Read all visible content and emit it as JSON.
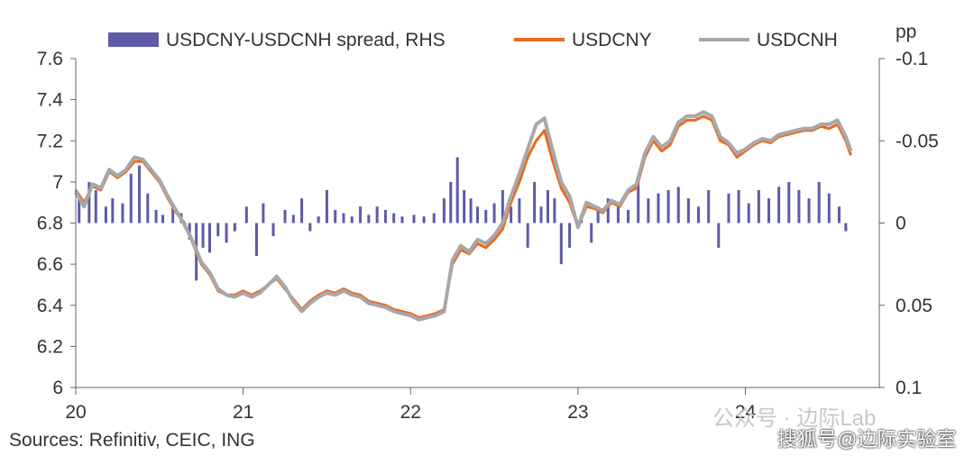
{
  "chart_data": {
    "type": "line",
    "title": "",
    "legend": {
      "placement": "top",
      "entries": [
        {
          "label": "USDCNY-USDCNH spread, RHS",
          "color": "#5e5aa8",
          "kind": "bar"
        },
        {
          "label": "USDCNY",
          "color": "#e86a1e",
          "kind": "line"
        },
        {
          "label": "USDCNH",
          "color": "#a8a8a8",
          "kind": "line"
        }
      ]
    },
    "left_axis": {
      "ylim": [
        6,
        7.6
      ],
      "ticks": [
        "6",
        "6.2",
        "6.4",
        "6.6",
        "6.8",
        "7",
        "7.2",
        "7.4",
        "7.6"
      ]
    },
    "right_axis": {
      "label": "pp",
      "ylim": [
        0.1,
        -0.1
      ],
      "inverted": true,
      "ticks": [
        {
          "value": -0.1,
          "label": "-0.1"
        },
        {
          "value": -0.05,
          "label": "-0.05"
        },
        {
          "value": 0,
          "label": "0"
        },
        {
          "value": 0.05,
          "label": "0.05"
        },
        {
          "value": 0.1,
          "label": "0.1"
        }
      ]
    },
    "x_axis": {
      "xlim": [
        2020,
        2024.8
      ],
      "ticks": [
        {
          "value": 2020,
          "label": "20"
        },
        {
          "value": 2021,
          "label": "21"
        },
        {
          "value": 2022,
          "label": "22"
        },
        {
          "value": 2023,
          "label": "23"
        },
        {
          "value": 2024,
          "label": "24"
        }
      ]
    },
    "grid": false,
    "series": [
      {
        "name": "USDCNY",
        "color": "#e86a1e",
        "x": [
          2020.0,
          2020.05,
          2020.1,
          2020.15,
          2020.2,
          2020.25,
          2020.3,
          2020.35,
          2020.4,
          2020.45,
          2020.5,
          2020.55,
          2020.6,
          2020.65,
          2020.7,
          2020.75,
          2020.8,
          2020.85,
          2020.9,
          2020.95,
          2021.0,
          2021.05,
          2021.1,
          2021.15,
          2021.2,
          2021.25,
          2021.3,
          2021.35,
          2021.4,
          2021.45,
          2021.5,
          2021.55,
          2021.6,
          2021.65,
          2021.7,
          2021.75,
          2021.8,
          2021.85,
          2021.9,
          2021.95,
          2022.0,
          2022.05,
          2022.1,
          2022.15,
          2022.2,
          2022.25,
          2022.3,
          2022.35,
          2022.4,
          2022.45,
          2022.5,
          2022.55,
          2022.6,
          2022.65,
          2022.7,
          2022.75,
          2022.8,
          2022.85,
          2022.9,
          2022.95,
          2023.0,
          2023.05,
          2023.1,
          2023.15,
          2023.2,
          2023.25,
          2023.3,
          2023.35,
          2023.4,
          2023.45,
          2023.5,
          2023.55,
          2023.6,
          2023.65,
          2023.7,
          2023.75,
          2023.8,
          2023.85,
          2023.9,
          2023.95,
          2024.0,
          2024.05,
          2024.1,
          2024.15,
          2024.2,
          2024.25,
          2024.3,
          2024.35,
          2024.4,
          2024.45,
          2024.5,
          2024.55,
          2024.6,
          2024.63
        ],
        "y": [
          6.96,
          6.9,
          6.98,
          6.96,
          7.05,
          7.02,
          7.05,
          7.1,
          7.1,
          7.05,
          7.0,
          6.92,
          6.85,
          6.8,
          6.7,
          6.6,
          6.55,
          6.47,
          6.45,
          6.45,
          6.47,
          6.45,
          6.47,
          6.5,
          6.53,
          6.48,
          6.43,
          6.38,
          6.42,
          6.45,
          6.47,
          6.46,
          6.48,
          6.46,
          6.45,
          6.42,
          6.41,
          6.4,
          6.38,
          6.37,
          6.36,
          6.34,
          6.35,
          6.36,
          6.38,
          6.6,
          6.67,
          6.65,
          6.7,
          6.68,
          6.72,
          6.77,
          6.9,
          7.0,
          7.12,
          7.2,
          7.25,
          7.1,
          6.97,
          6.9,
          6.78,
          6.88,
          6.87,
          6.85,
          6.9,
          6.88,
          6.95,
          6.97,
          7.12,
          7.2,
          7.15,
          7.18,
          7.27,
          7.3,
          7.3,
          7.32,
          7.3,
          7.2,
          7.18,
          7.12,
          7.15,
          7.18,
          7.2,
          7.19,
          7.22,
          7.23,
          7.24,
          7.25,
          7.25,
          7.27,
          7.26,
          7.28,
          7.2,
          7.13
        ]
      },
      {
        "name": "USDCNH",
        "color": "#a8a8a8",
        "x": [
          2020.0,
          2020.05,
          2020.1,
          2020.15,
          2020.2,
          2020.25,
          2020.3,
          2020.35,
          2020.4,
          2020.45,
          2020.5,
          2020.55,
          2020.6,
          2020.65,
          2020.7,
          2020.75,
          2020.8,
          2020.85,
          2020.9,
          2020.95,
          2021.0,
          2021.05,
          2021.1,
          2021.15,
          2021.2,
          2021.25,
          2021.3,
          2021.35,
          2021.4,
          2021.45,
          2021.5,
          2021.55,
          2021.6,
          2021.65,
          2021.7,
          2021.75,
          2021.8,
          2021.85,
          2021.9,
          2021.95,
          2022.0,
          2022.05,
          2022.1,
          2022.15,
          2022.2,
          2022.25,
          2022.3,
          2022.35,
          2022.4,
          2022.45,
          2022.5,
          2022.55,
          2022.6,
          2022.65,
          2022.7,
          2022.75,
          2022.8,
          2022.85,
          2022.9,
          2022.95,
          2023.0,
          2023.05,
          2023.1,
          2023.15,
          2023.2,
          2023.25,
          2023.3,
          2023.35,
          2023.4,
          2023.45,
          2023.5,
          2023.55,
          2023.6,
          2023.65,
          2023.7,
          2023.75,
          2023.8,
          2023.85,
          2023.9,
          2023.95,
          2024.0,
          2024.05,
          2024.1,
          2024.15,
          2024.2,
          2024.25,
          2024.3,
          2024.35,
          2024.4,
          2024.45,
          2024.5,
          2024.55,
          2024.6,
          2024.63
        ],
        "y": [
          6.95,
          6.88,
          6.99,
          6.97,
          7.06,
          7.03,
          7.06,
          7.12,
          7.11,
          7.06,
          7.01,
          6.93,
          6.86,
          6.79,
          6.71,
          6.61,
          6.56,
          6.48,
          6.45,
          6.44,
          6.46,
          6.44,
          6.46,
          6.5,
          6.54,
          6.49,
          6.42,
          6.37,
          6.41,
          6.44,
          6.46,
          6.45,
          6.47,
          6.45,
          6.44,
          6.41,
          6.4,
          6.39,
          6.37,
          6.36,
          6.35,
          6.33,
          6.34,
          6.35,
          6.37,
          6.62,
          6.69,
          6.66,
          6.72,
          6.7,
          6.74,
          6.8,
          6.93,
          7.04,
          7.16,
          7.28,
          7.31,
          7.15,
          7.0,
          6.93,
          6.78,
          6.9,
          6.88,
          6.86,
          6.91,
          6.89,
          6.96,
          6.99,
          7.14,
          7.22,
          7.17,
          7.2,
          7.29,
          7.32,
          7.32,
          7.34,
          7.32,
          7.22,
          7.19,
          7.14,
          7.16,
          7.19,
          7.21,
          7.2,
          7.23,
          7.24,
          7.25,
          7.26,
          7.26,
          7.28,
          7.28,
          7.3,
          7.22,
          7.15
        ]
      }
    ],
    "spread_series": {
      "name": "USDCNY-USDCNH spread, RHS",
      "x": [
        2020.02,
        2020.08,
        2020.12,
        2020.18,
        2020.22,
        2020.28,
        2020.33,
        2020.38,
        2020.43,
        2020.48,
        2020.52,
        2020.58,
        2020.63,
        2020.68,
        2020.72,
        2020.76,
        2020.8,
        2020.85,
        2020.9,
        2020.95,
        2021.02,
        2021.08,
        2021.12,
        2021.18,
        2021.25,
        2021.3,
        2021.35,
        2021.4,
        2021.45,
        2021.5,
        2021.55,
        2021.6,
        2021.65,
        2021.7,
        2021.75,
        2021.8,
        2021.85,
        2021.9,
        2021.95,
        2022.02,
        2022.08,
        2022.14,
        2022.2,
        2022.24,
        2022.28,
        2022.32,
        2022.36,
        2022.4,
        2022.45,
        2022.5,
        2022.55,
        2022.6,
        2022.65,
        2022.7,
        2022.74,
        2022.78,
        2022.82,
        2022.86,
        2022.9,
        2022.95,
        2023.02,
        2023.08,
        2023.12,
        2023.18,
        2023.24,
        2023.3,
        2023.36,
        2023.42,
        2023.48,
        2023.54,
        2023.6,
        2023.66,
        2023.72,
        2023.78,
        2023.84,
        2023.9,
        2023.96,
        2024.02,
        2024.08,
        2024.14,
        2024.2,
        2024.26,
        2024.32,
        2024.38,
        2024.44,
        2024.5,
        2024.56,
        2024.6
      ],
      "values": [
        -0.015,
        -0.025,
        -0.02,
        -0.01,
        -0.015,
        -0.012,
        -0.03,
        -0.035,
        -0.018,
        -0.008,
        -0.005,
        -0.012,
        -0.006,
        0.01,
        0.035,
        0.015,
        0.018,
        0.008,
        0.012,
        0.005,
        -0.01,
        0.02,
        -0.012,
        0.008,
        -0.008,
        -0.005,
        -0.015,
        0.005,
        -0.004,
        -0.02,
        -0.008,
        -0.006,
        -0.004,
        -0.01,
        -0.005,
        -0.01,
        -0.008,
        -0.006,
        -0.004,
        -0.005,
        -0.004,
        -0.006,
        -0.015,
        -0.025,
        -0.04,
        -0.02,
        -0.015,
        -0.01,
        -0.008,
        -0.012,
        -0.02,
        -0.01,
        -0.015,
        0.015,
        -0.025,
        -0.01,
        -0.02,
        -0.015,
        0.025,
        0.015,
        -0.005,
        0.012,
        -0.01,
        -0.015,
        -0.012,
        -0.008,
        -0.025,
        -0.015,
        -0.018,
        -0.02,
        -0.022,
        -0.015,
        -0.01,
        -0.02,
        0.015,
        -0.018,
        -0.02,
        -0.012,
        -0.02,
        -0.015,
        -0.022,
        -0.025,
        -0.02,
        -0.015,
        -0.025,
        -0.018,
        -0.01,
        0.005
      ]
    }
  },
  "legend_pp_label": "pp",
  "source_text": "Sources: Refinitiv, CEIC, ING",
  "watermark1": "公众号 · 边际Lab",
  "watermark2": "搜狐号@边际实验室"
}
